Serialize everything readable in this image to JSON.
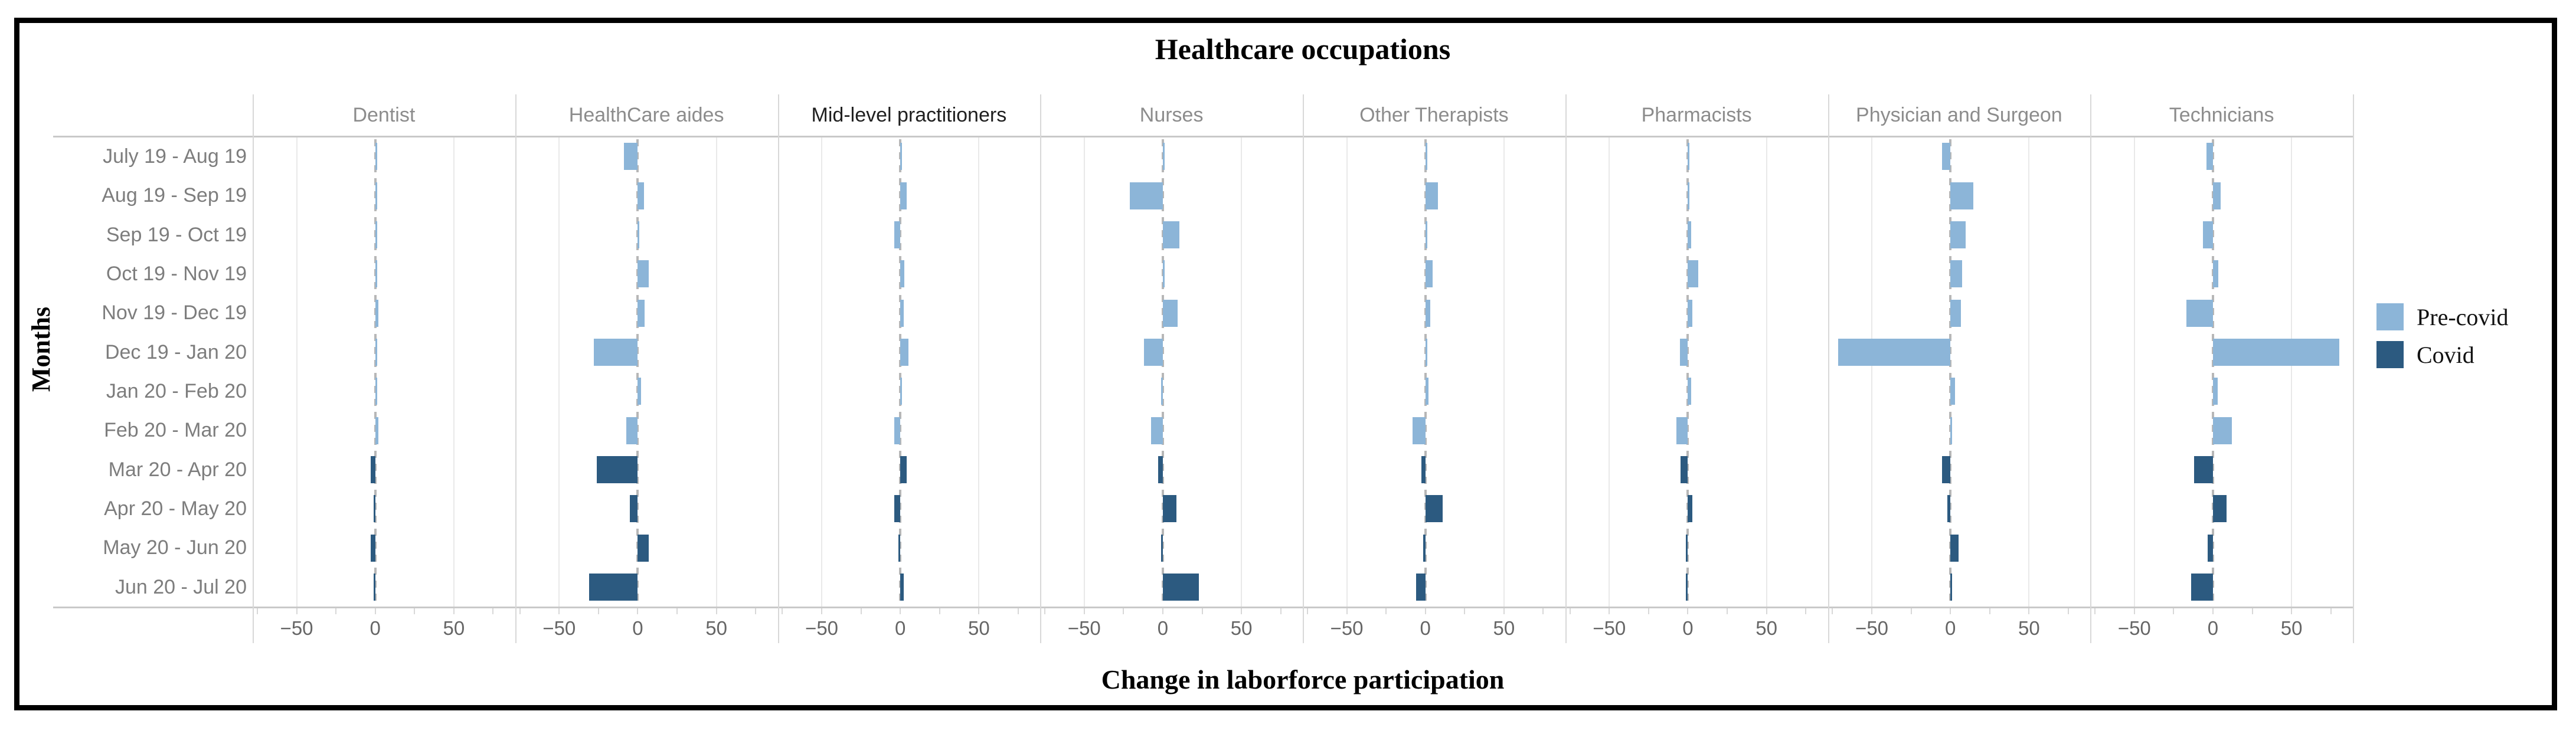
{
  "chart": {
    "title": "Healthcare occupations",
    "x_axis_title": "Change in laborforce participation",
    "y_axis_title": "Months",
    "panels": [
      {
        "label": "Dentist",
        "label_color": "#8c8c8c"
      },
      {
        "label": "HealthCare aides",
        "label_color": "#8c8c8c"
      },
      {
        "label": "Mid-level practitioners",
        "label_color": "#1f1f1f"
      },
      {
        "label": "Nurses",
        "label_color": "#8c8c8c"
      },
      {
        "label": "Other Therapists",
        "label_color": "#8c8c8c"
      },
      {
        "label": "Pharmacists",
        "label_color": "#8c8c8c"
      },
      {
        "label": "Physician and Surgeon",
        "label_color": "#8c8c8c"
      },
      {
        "label": "Technicians",
        "label_color": "#8c8c8c"
      }
    ],
    "legend": [
      {
        "label": "Pre-covid",
        "color": "#8CB5D8"
      },
      {
        "label": "Covid",
        "color": "#2C5A80"
      }
    ],
    "colors": {
      "precovid": "#8CB5D8",
      "covid": "#2C5A80",
      "gridline": "#e9e9e9",
      "axis_line": "#c9c9c9",
      "divider": "#d8d8d8",
      "zero_line": "#b7b7b7",
      "month_label": "#7d7d7d",
      "tick_label": "#666666"
    },
    "x_tick_labels": [
      "−50",
      "0",
      "50"
    ]
  },
  "chart_data": {
    "type": "bar",
    "orientation": "horizontal",
    "title": "Healthcare occupations",
    "xlabel": "Change in laborforce participation",
    "ylabel": "Months",
    "legend_position": "right",
    "legend": [
      "Pre-covid",
      "Covid"
    ],
    "grid": "light vertical gridlines at -50 and +50 per panel, dashed gray zero line",
    "xlim": [
      -78,
      89
    ],
    "x_ticks": [
      -50,
      0,
      50
    ],
    "x_minor_ticks": [
      -75,
      -50,
      -25,
      0,
      25,
      50,
      75
    ],
    "categories": [
      "July 19 - Aug 19",
      "Aug 19 - Sep 19",
      "Sep 19 - Oct 19",
      "Oct 19 - Nov 19",
      "Nov 19 - Dec 19",
      "Dec 19 - Jan 20",
      "Jan 20 - Feb 20",
      "Feb 20 - Mar 20",
      "Mar 20 - Apr 20",
      "Apr 20 - May 20",
      "May 20 - Jun 20",
      "Jun 20 - Jul 20"
    ],
    "row_period": [
      "Pre-covid",
      "Pre-covid",
      "Pre-covid",
      "Pre-covid",
      "Pre-covid",
      "Pre-covid",
      "Pre-covid",
      "Pre-covid",
      "Covid",
      "Covid",
      "Covid",
      "Covid"
    ],
    "covid_rows_start_index": 8,
    "facets": [
      {
        "name": "Dentist",
        "values": [
          1,
          0.5,
          0.5,
          0.5,
          2,
          1,
          0.5,
          2,
          -3,
          -1,
          -3,
          -1
        ]
      },
      {
        "name": "HealthCare aides",
        "values": [
          -9,
          4,
          1,
          7,
          4.5,
          -28,
          2,
          -7.5,
          -26,
          -5,
          7,
          -31
        ]
      },
      {
        "name": "Mid-level practitioners",
        "values": [
          1,
          4,
          -4,
          2.5,
          2,
          5,
          1,
          -4,
          4,
          -4,
          -1,
          2
        ]
      },
      {
        "name": "Nurses",
        "values": [
          0.5,
          -21,
          10.5,
          0.5,
          9.5,
          -12,
          -0.5,
          -7.5,
          -3,
          8.5,
          -1,
          23
        ]
      },
      {
        "name": "Other Therapists",
        "values": [
          0.5,
          8,
          0.5,
          4.5,
          3,
          0.5,
          2,
          -8,
          -2.5,
          11,
          -1.5,
          -6
        ]
      },
      {
        "name": "Pharmacists",
        "values": [
          0.5,
          0.5,
          2,
          6.5,
          3,
          -5,
          2,
          -7.5,
          -4.5,
          3,
          -1,
          -0.5
        ]
      },
      {
        "name": "Physician and Surgeon",
        "values": [
          -5.5,
          14.5,
          9.5,
          7.5,
          6.5,
          -71.5,
          3,
          1,
          -5.5,
          -2,
          5,
          1
        ]
      },
      {
        "name": "Technicians",
        "values": [
          -4,
          5,
          -6.5,
          3.5,
          -17,
          80.5,
          3,
          12,
          -12,
          8.5,
          -3.5,
          -14
        ]
      }
    ]
  }
}
